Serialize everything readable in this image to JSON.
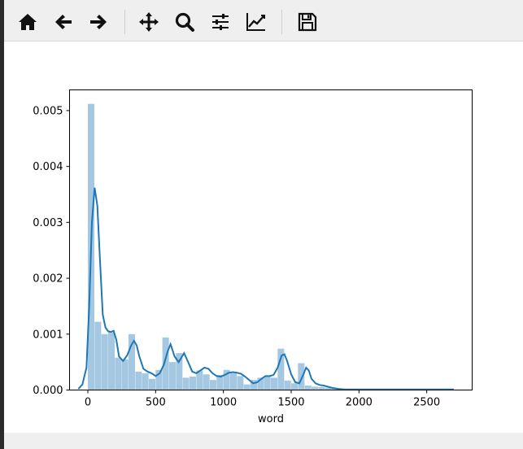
{
  "toolbar": {
    "buttons": [
      {
        "name": "home-icon",
        "label": "Home"
      },
      {
        "name": "back-icon",
        "label": "Back"
      },
      {
        "name": "forward-icon",
        "label": "Forward"
      },
      {
        "name": "pan-icon",
        "label": "Pan"
      },
      {
        "name": "zoom-icon",
        "label": "Zoom"
      },
      {
        "name": "configure-subplots-icon",
        "label": "Subplots"
      },
      {
        "name": "edit-axis-icon",
        "label": "Customize"
      },
      {
        "name": "save-icon",
        "label": "Save"
      }
    ]
  },
  "colors": {
    "bar": "#a4c8e1",
    "line": "#1f77b4",
    "toolbar_bg": "#efefef"
  },
  "chart_data": {
    "type": "bar",
    "overlay": "line",
    "title": "",
    "xlabel": "word",
    "ylabel": "",
    "xlim": [
      -135,
      2835
    ],
    "ylim": [
      0,
      0.00537
    ],
    "xticks": [
      0,
      500,
      1000,
      1500,
      2000,
      2500
    ],
    "xtick_labels": [
      "0",
      "500",
      "1000",
      "1500",
      "2000",
      "2500"
    ],
    "yticks": [
      0,
      0.001,
      0.002,
      0.003,
      0.004,
      0.005
    ],
    "ytick_labels": [
      "0.000",
      "0.001",
      "0.002",
      "0.003",
      "0.004",
      "0.005"
    ],
    "grid": false,
    "histogram": {
      "bin_width": 50,
      "bin_starts": [
        0,
        50,
        100,
        150,
        200,
        250,
        300,
        350,
        400,
        450,
        500,
        550,
        600,
        650,
        700,
        750,
        800,
        850,
        900,
        950,
        1000,
        1050,
        1100,
        1150,
        1200,
        1250,
        1300,
        1350,
        1400,
        1450,
        1500,
        1550,
        1600,
        1650,
        1700,
        1750,
        1800,
        1850,
        1900,
        1950,
        2000,
        2050,
        2100,
        2150,
        2200,
        2250,
        2300,
        2350,
        2400,
        2450,
        2500,
        2550,
        2600,
        2650
      ],
      "values": [
        0.00512,
        0.00122,
        0.001,
        0.00103,
        0.00058,
        0.00055,
        0.001,
        0.00033,
        0.0003,
        0.0002,
        0.00036,
        0.00094,
        0.0005,
        0.00066,
        0.00022,
        0.00024,
        0.00035,
        0.00028,
        0.00018,
        0.00027,
        0.00036,
        0.0003,
        0.00025,
        0.0001,
        0.00018,
        0.00022,
        0.00024,
        0.00022,
        0.00074,
        0.00017,
        0.00012,
        0.00048,
        8e-05,
        6e-05,
        5e-05,
        4e-05,
        3e-05,
        2e-05,
        2e-05,
        1e-05,
        1e-05,
        1e-05,
        1e-05,
        1e-05,
        1e-05,
        1e-05,
        1e-05,
        1e-05,
        1e-05,
        1e-05,
        1e-05,
        1e-05,
        1e-05,
        1e-05
      ]
    },
    "kde": {
      "x": [
        -70,
        -40,
        -10,
        10,
        30,
        50,
        70,
        90,
        110,
        130,
        150,
        170,
        190,
        210,
        230,
        260,
        290,
        320,
        340,
        360,
        380,
        410,
        440,
        470,
        500,
        530,
        560,
        590,
        610,
        640,
        670,
        690,
        710,
        740,
        770,
        800,
        830,
        860,
        890,
        920,
        950,
        980,
        1010,
        1040,
        1070,
        1100,
        1130,
        1160,
        1190,
        1220,
        1250,
        1280,
        1310,
        1340,
        1370,
        1400,
        1430,
        1450,
        1470,
        1500,
        1530,
        1560,
        1590,
        1610,
        1630,
        1650,
        1680,
        1710,
        1740,
        1770,
        1800,
        1850,
        1900,
        1950,
        2000,
        2100,
        2200,
        2300,
        2400,
        2500,
        2600,
        2700
      ],
      "y": [
        2e-05,
        0.0001,
        0.0004,
        0.0015,
        0.003,
        0.00362,
        0.0033,
        0.0023,
        0.00135,
        0.00112,
        0.00105,
        0.00104,
        0.00106,
        0.0009,
        0.0006,
        0.00052,
        0.00062,
        0.0008,
        0.00088,
        0.0008,
        0.0006,
        0.00038,
        0.00033,
        0.0003,
        0.00025,
        0.0003,
        0.00045,
        0.0007,
        0.00082,
        0.0006,
        0.0005,
        0.00058,
        0.00066,
        0.0005,
        0.00033,
        0.0003,
        0.00035,
        0.0004,
        0.00038,
        0.0003,
        0.00025,
        0.00024,
        0.00027,
        0.00031,
        0.00032,
        0.00031,
        0.00029,
        0.00024,
        0.00018,
        0.00012,
        0.00014,
        0.0002,
        0.00025,
        0.00025,
        0.00027,
        0.0004,
        0.00062,
        0.00064,
        0.00052,
        0.00028,
        0.00014,
        0.00012,
        0.00028,
        0.0004,
        0.00035,
        0.0002,
        0.00012,
        9e-05,
        8e-05,
        6e-05,
        4e-05,
        2e-05,
        1e-05,
        1e-05,
        1e-05,
        1e-05,
        1e-05,
        1e-05,
        1e-05,
        1e-05,
        1e-05,
        1e-05
      ]
    }
  }
}
